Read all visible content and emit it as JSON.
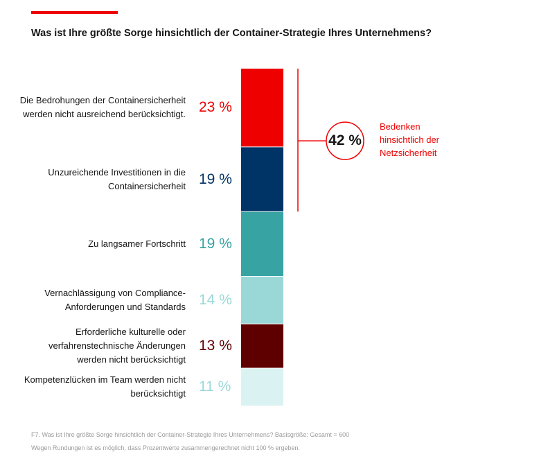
{
  "question": "Was ist Ihre größte Sorge hinsichtlich der Container-Strategie Ihres Unternehmens?",
  "chart_data": {
    "type": "bar",
    "orientation": "stacked-vertical",
    "categories": [
      "Die Bedrohungen der Containersicherheit werden nicht ausreichend berücksichtigt.",
      "Unzureichende Investitionen in die Containersicherheit",
      "Zu langsamer Fortschritt",
      "Vernachlässigung von Compliance-Anforderungen und Standards",
      "Erforderliche kulturelle oder verfahrenstechnische Änderungen werden nicht berücksichtigt",
      "Kompetenzlücken im Team werden nicht berücksichtigt"
    ],
    "values": [
      23,
      19,
      19,
      14,
      13,
      11
    ],
    "value_labels": [
      "23 %",
      "19 %",
      "19 %",
      "14 %",
      "13 %",
      "11 %"
    ],
    "colors": [
      "#ee0000",
      "#003366",
      "#37a3a3",
      "#9ad8d8",
      "#5f0000",
      "#daf2f2"
    ],
    "label_colors": [
      "#ee0000",
      "#003366",
      "#37a3a3",
      "#9ad8d8",
      "#5f0000",
      "#9ad8d8"
    ],
    "callout": {
      "value": "42 %",
      "text": "Bedenken hinsichtlich der Netzsicherheit",
      "covers_first_n": 2,
      "color": "#ee0000"
    }
  },
  "footnotes": [
    "F7. Was ist Ihre größte Sorge hinsichtlich der Container-Strategie Ihres Unternehmens? Basisgröße: Gesamt = 600",
    "Wegen Rundungen ist es möglich, dass Prozentwerte zusammengerechnet nicht 100 % ergeben."
  ]
}
